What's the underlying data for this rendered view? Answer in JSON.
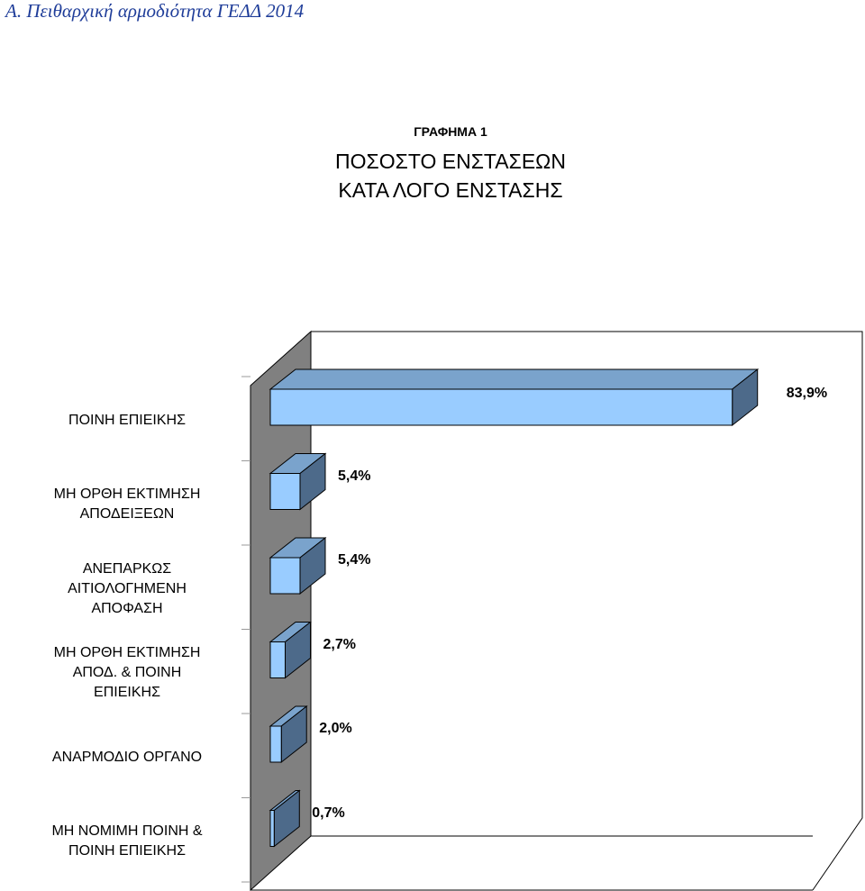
{
  "document": {
    "heading": "Α. Πειθαρχική αρμοδιότητα ΓΕΔΔ 2014"
  },
  "chart_data": {
    "type": "bar",
    "orientation": "horizontal",
    "three_d": true,
    "chart_number": "ΓΡΑΦΗΜΑ 1",
    "title_lines": [
      "ΠΟΣΟΣΤΟ ΕΝΣΤΑΣΕΩΝ",
      "ΚΑΤΑ ΛΟΓΟ ΕΝΣΤΑΣΗΣ"
    ],
    "categories": [
      "ΠΟΙΝΗ ΕΠΙΕΙΚΗΣ",
      "ΜΗ ΟΡΘΗ ΕΚΤΙΜΗΣΗ\nΑΠΟΔΕΙΞΕΩΝ",
      "ΑΝΕΠΑΡΚΩΣ\nΑΙΤΙΟΛΟΓΗΜΕΝΗ\nΑΠΟΦΑΣΗ",
      "ΜΗ ΟΡΘΗ ΕΚΤΙΜΗΣΗ\nΑΠΟΔ. & ΠΟΙΝΗ\nΕΠΙΕΙΚΗΣ",
      "ΑΝΑΡΜΟΔΙΟ ΟΡΓΑΝΟ",
      "ΜΗ ΝΟΜΙΜΗ ΠΟΙΝΗ &\nΠΟΙΝΗ ΕΠΙΕΙΚΗΣ"
    ],
    "values": [
      83.9,
      5.4,
      5.4,
      2.7,
      2.0,
      0.7
    ],
    "value_labels": [
      "83,9%",
      "5,4%",
      "5,4%",
      "2,7%",
      "2,0%",
      "0,7%"
    ],
    "xlim": [
      0,
      90
    ],
    "unit": "%",
    "grid": false,
    "legend": "none",
    "colors": {
      "bar_front": "#99ccff",
      "bar_top": "#7aa3cc",
      "bar_side": "#4d6a8a",
      "back_wall": "#808080",
      "frame": "#000000"
    }
  }
}
